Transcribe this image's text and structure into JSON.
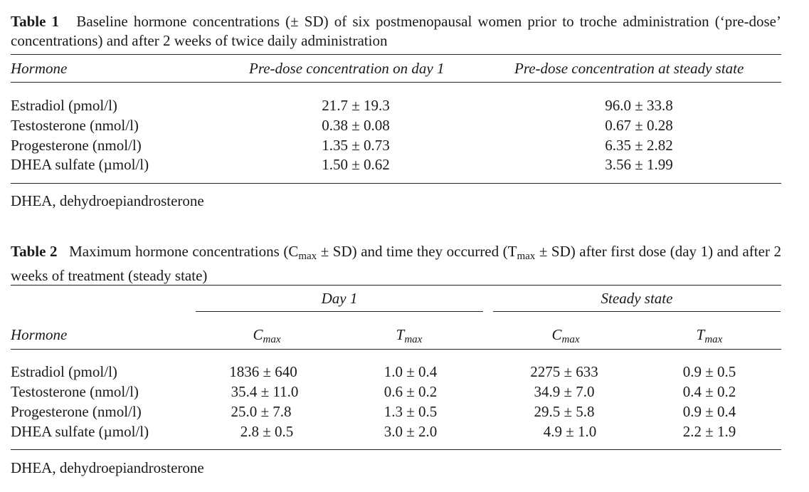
{
  "table1": {
    "label": "Table 1",
    "caption": "Baseline hormone concentrations (± SD) of six postmenopausal women prior to troche administration (‘pre-dose’ concentrations) and after 2 weeks of twice daily administration",
    "headers": [
      "Hormone",
      "Pre-dose concentration on day 1",
      "Pre-dose concentration at steady state"
    ],
    "rows": [
      [
        "Estradiol (pmol/l)",
        "21.7 ± 19.3",
        "96.0 ± 33.8"
      ],
      [
        "Testosterone (nmol/l)",
        "0.38 ± 0.08",
        "0.67 ± 0.28"
      ],
      [
        "Progesterone (nmol/l)",
        "1.35 ± 0.73",
        "6.35 ± 2.82"
      ],
      [
        "DHEA sulfate (µmol/l)",
        "1.50 ± 0.62",
        "3.56 ± 1.99"
      ]
    ],
    "footnote": "DHEA, dehydroepiandrosterone"
  },
  "table2": {
    "label": "Table 2",
    "caption_part1": "Maximum hormone concentrations (C",
    "caption_sub1": "max",
    "caption_part2": " ± SD) and time they occurred (T",
    "caption_sub2": "max",
    "caption_part3": " ± SD) after first dose (day 1) and after 2 weeks of treatment (steady state)",
    "group_headers": [
      "Day 1",
      "Steady state"
    ],
    "row_header": "Hormone",
    "col_letters": [
      "C",
      "T",
      "C",
      "T"
    ],
    "col_subs": [
      "max",
      "max",
      "max",
      "max"
    ],
    "rows": [
      [
        "Estradiol (pmol/l)",
        "1836 ± 640",
        "1.0 ± 0.4",
        "2275 ± 633",
        "0.9 ± 0.5"
      ],
      [
        "Testosterone (nmol/l)",
        "35.4 ± 11.0",
        "0.6 ± 0.2",
        "34.9 ± 7.0",
        "0.4 ± 0.2"
      ],
      [
        "Progesterone (nmol/l)",
        "25.0 ± 7.8",
        "1.3 ± 0.5",
        "29.5 ± 5.8",
        "0.9 ± 0.4"
      ],
      [
        "DHEA sulfate (µmol/l)",
        "2.8 ± 0.5",
        "3.0 ± 2.0",
        "4.9 ± 1.0",
        "2.2 ± 1.9"
      ]
    ],
    "footnote": "DHEA, dehydroepiandrosterone"
  }
}
